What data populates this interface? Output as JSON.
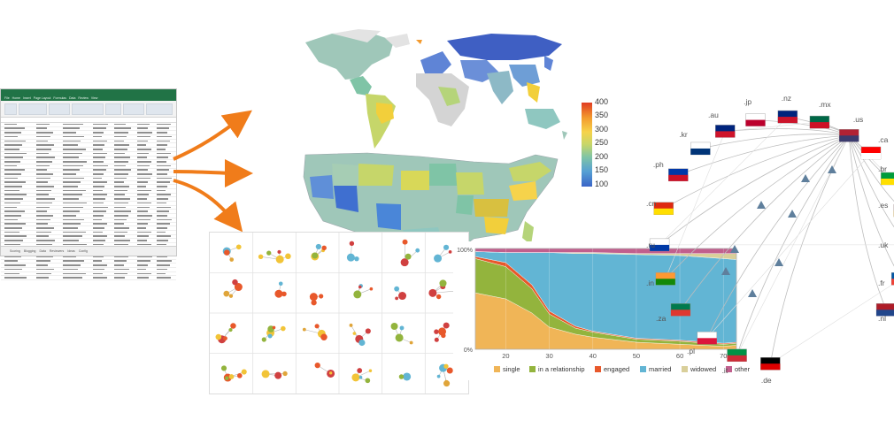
{
  "spreadsheet": {
    "tabs": [
      "File",
      "Home",
      "Insert",
      "Page Layout",
      "Formulas",
      "Data",
      "Review",
      "View"
    ],
    "sheet_tabs": [
      "Scoring",
      "Blogging",
      "Data",
      "Reviewers",
      "Ideas",
      "Config"
    ]
  },
  "colorbar": {
    "ticks": [
      "400",
      "350",
      "300",
      "250",
      "200",
      "150",
      "100"
    ]
  },
  "chart_data": {
    "type": "area",
    "x": [
      13,
      20,
      26,
      30,
      36,
      40,
      50,
      60,
      70,
      73
    ],
    "series": [
      {
        "name": "single",
        "values": [
          0.56,
          0.5,
          0.36,
          0.22,
          0.15,
          0.12,
          0.07,
          0.05,
          0.03,
          0.04
        ]
      },
      {
        "name": "in a relationship",
        "values": [
          0.34,
          0.32,
          0.24,
          0.13,
          0.06,
          0.05,
          0.03,
          0.03,
          0.02,
          0.02
        ]
      },
      {
        "name": "engaged",
        "values": [
          0.02,
          0.04,
          0.04,
          0.03,
          0.02,
          0.01,
          0.01,
          0.01,
          0.01,
          0.01
        ]
      },
      {
        "name": "married",
        "values": [
          0.05,
          0.1,
          0.32,
          0.58,
          0.72,
          0.77,
          0.83,
          0.84,
          0.84,
          0.82
        ]
      },
      {
        "name": "widowed",
        "values": [
          0.0,
          0.0,
          0.0,
          0.0,
          0.01,
          0.01,
          0.01,
          0.02,
          0.05,
          0.06
        ]
      },
      {
        "name": "other",
        "values": [
          0.03,
          0.04,
          0.04,
          0.04,
          0.04,
          0.04,
          0.05,
          0.05,
          0.05,
          0.05
        ]
      }
    ],
    "colors": [
      "#f0b557",
      "#93b43d",
      "#e8582b",
      "#62b5d4",
      "#d9cf9a",
      "#c15f8d"
    ],
    "x_ticks": [
      "20",
      "30",
      "40",
      "50",
      "60",
      "70"
    ],
    "y_ticks": [
      "0%",
      "100%"
    ],
    "xlim": [
      13,
      73
    ]
  },
  "flag_labels": [
    ".au",
    ".jp",
    ".nz",
    ".mx",
    ".kr",
    ".us",
    ".ca",
    ".ph",
    ".br",
    ".cn",
    ".es",
    ".ru",
    ".uk",
    ".in",
    ".fr",
    ".nl",
    ".za",
    ".pl",
    ".it",
    ".de"
  ]
}
